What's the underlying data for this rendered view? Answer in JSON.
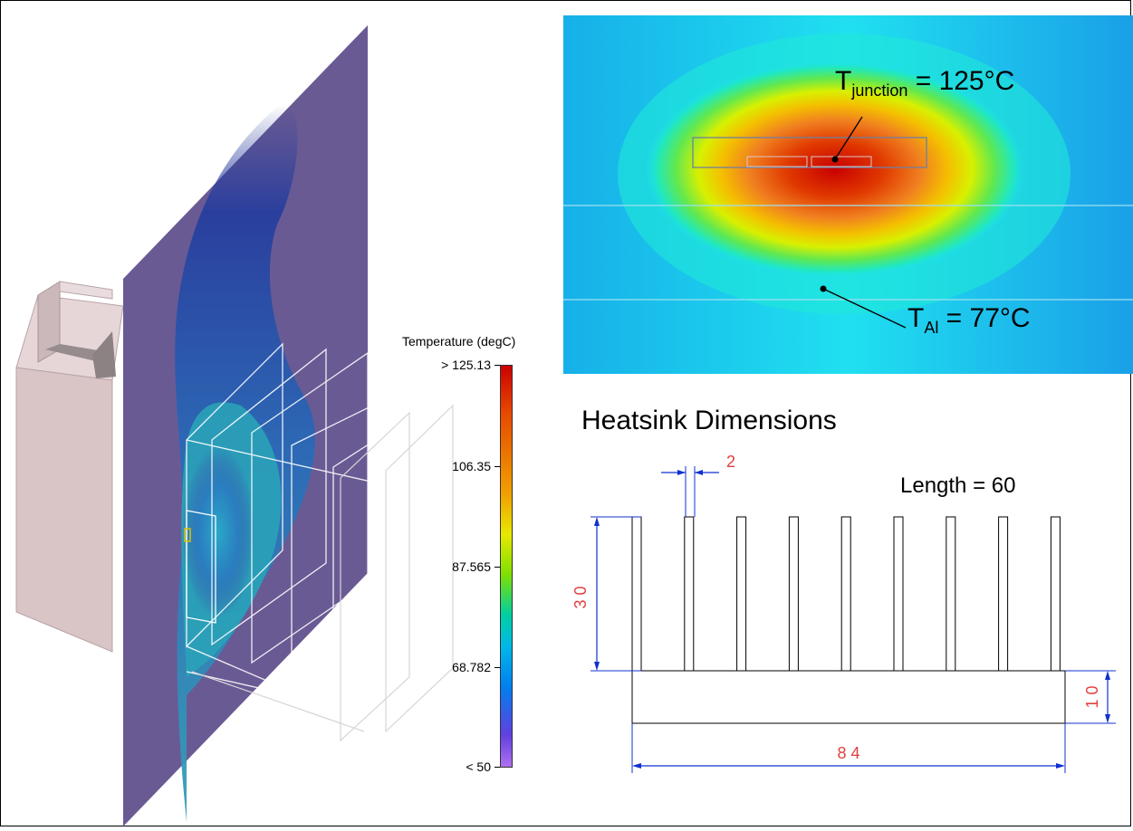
{
  "legend": {
    "title": "Temperature (degC)",
    "ticks": [
      "> 125.13",
      "106.35",
      "87.565",
      "68.782",
      "< 50"
    ]
  },
  "thermal": {
    "junction_symbol": "T",
    "junction_subscript": "junction",
    "junction_value": " = 125°C",
    "al_symbol": "T",
    "al_subscript": "Al",
    "al_value": " = 77°C"
  },
  "drawing": {
    "title": "Heatsink Dimensions",
    "length_label": "Length = 60",
    "dim_fin_thickness": "2",
    "dim_fin_height": "3 0",
    "dim_base_height": "1 0",
    "dim_width": "8 4"
  },
  "colors": {
    "plane": "#6a5a94",
    "housing": "#d7c2c4",
    "dimension": "#e04040",
    "dimension_arrow": "#1030d0",
    "thermal_bg": "#1ee0f0"
  }
}
